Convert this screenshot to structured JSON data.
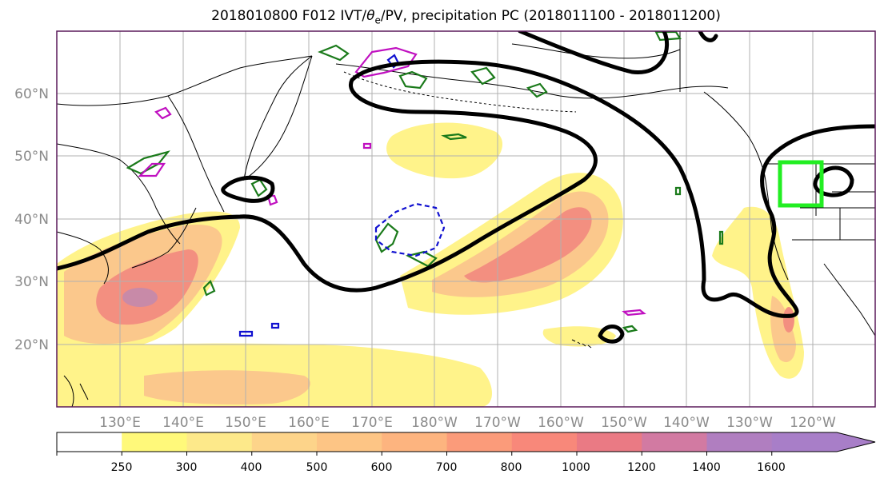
{
  "title": {
    "prefix": "2018010800 F012 IVT/",
    "theta": "θ",
    "theta_sub": "e",
    "suffix": "/PV, precipitation PC (2018011100 - 2018011200)"
  },
  "lat_labels": [
    "60°N",
    "50°N",
    "40°N",
    "30°N",
    "20°N"
  ],
  "lon_labels": [
    "130°E",
    "140°E",
    "150°E",
    "160°E",
    "170°E",
    "180°W",
    "170°W",
    "160°W",
    "150°W",
    "140°W",
    "130°W",
    "120°W"
  ],
  "colorbar": {
    "ticks": [
      "250",
      "300",
      "400",
      "500",
      "600",
      "700",
      "800",
      "1000",
      "1200",
      "1400",
      "1600"
    ],
    "colors": [
      "#ffffff",
      "#fff97a",
      "#fde98a",
      "#fdd48a",
      "#fdc585",
      "#fdb47f",
      "#fb9b7a",
      "#f8887a",
      "#ea7a84",
      "#d27aa2",
      "#b07ec0",
      "#a87ec8"
    ]
  },
  "colors": {
    "ivt_low": "#fff38a",
    "ivt_mid": "#fbc88c",
    "ivt_high": "#f38f80",
    "ivt_core": "#c88aa8",
    "theta_e_contour": "#000000",
    "pv_green": "#1a7a1a",
    "pv_blue": "#1010d0",
    "pv_magenta": "#c010c0",
    "highlight_box": "#22ee22",
    "coastline": "#000000",
    "grid": "#b0b0b0",
    "tick_label": "#8a8a8a"
  }
}
